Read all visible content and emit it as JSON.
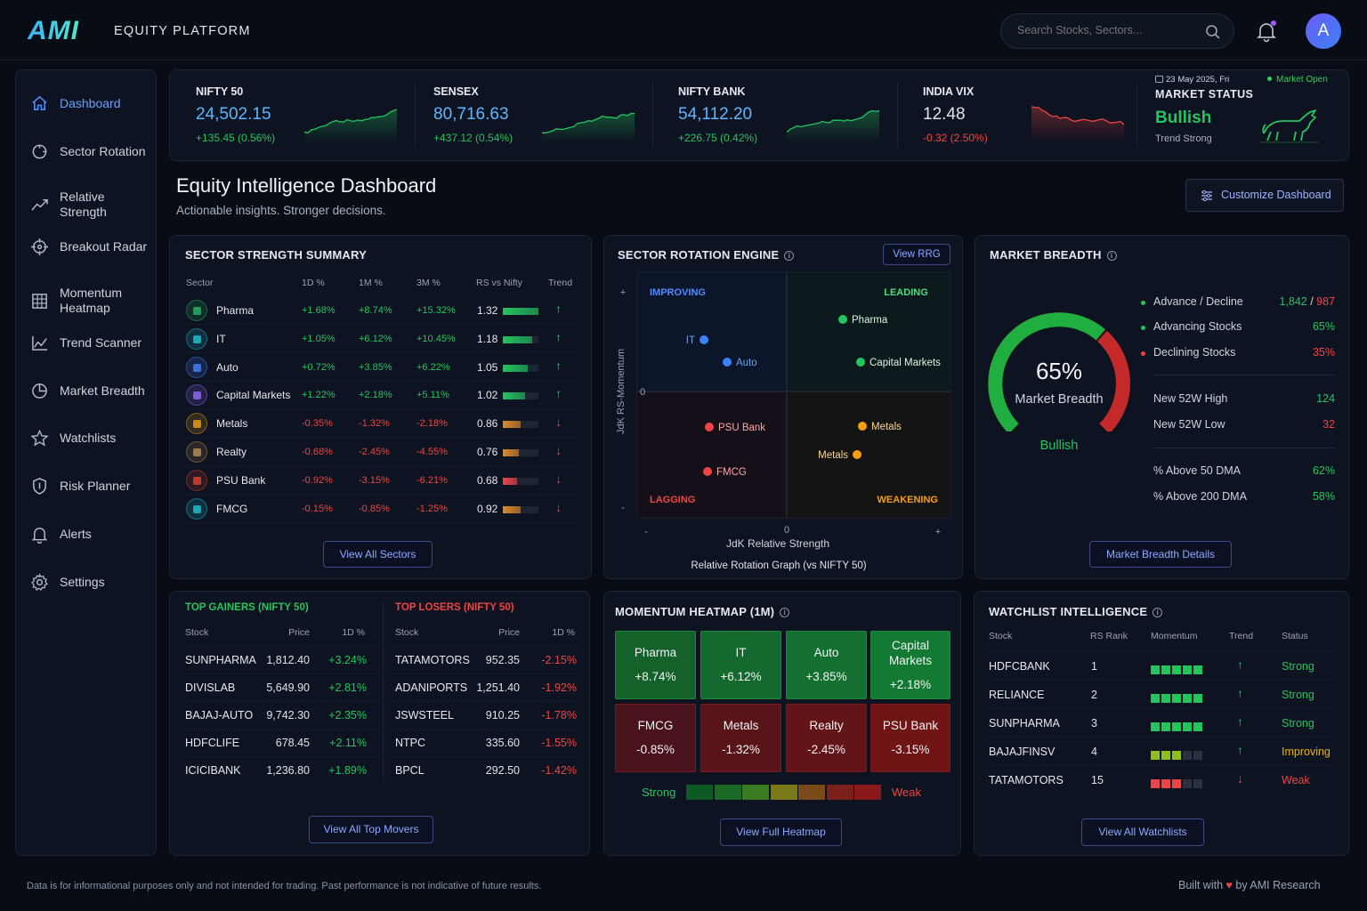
{
  "header": {
    "logo": "AMI",
    "platform": "EQUITY PLATFORM",
    "search_placeholder": "Search Stocks, Sectors...",
    "avatar": "A"
  },
  "sidebar": {
    "items": [
      {
        "label": "Dashboard",
        "icon": "home-icon"
      },
      {
        "label": "Sector Rotation",
        "icon": "rotate-icon"
      },
      {
        "label": "Relative Strength",
        "icon": "trend-line-icon"
      },
      {
        "label": "Breakout Radar",
        "icon": "crosshair-icon"
      },
      {
        "label": "Momentum Heatmap",
        "icon": "grid-icon"
      },
      {
        "label": "Trend Scanner",
        "icon": "area-chart-icon"
      },
      {
        "label": "Market Breadth",
        "icon": "pie-icon"
      },
      {
        "label": "Watchlists",
        "icon": "star-icon"
      },
      {
        "label": "Risk Planner",
        "icon": "shield-icon"
      },
      {
        "label": "Alerts",
        "icon": "bell-icon"
      },
      {
        "label": "Settings",
        "icon": "gear-icon"
      }
    ]
  },
  "tickers": [
    {
      "name": "NIFTY 50",
      "value": "24,502.15",
      "change": "+135.45 (0.56%)",
      "dir": "up"
    },
    {
      "name": "SENSEX",
      "value": "80,716.63",
      "change": "+437.12 (0.54%)",
      "dir": "up"
    },
    {
      "name": "NIFTY BANK",
      "value": "54,112.20",
      "change": "+226.75 (0.42%)",
      "dir": "up"
    },
    {
      "name": "INDIA VIX",
      "value": "12.48",
      "change": "-0.32 (2.50%)",
      "dir": "down"
    }
  ],
  "market_status": {
    "date": "23 May 2025, Fri",
    "open_label": "Market Open",
    "title": "MARKET STATUS",
    "state": "Bullish",
    "sub": "Trend Strong"
  },
  "page": {
    "title": "Equity Intelligence Dashboard",
    "subtitle": "Actionable insights. Stronger decisions.",
    "customize": "Customize Dashboard"
  },
  "sector_strength": {
    "title": "SECTOR STRENGTH SUMMARY",
    "headers": [
      "Sector",
      "1D %",
      "1M %",
      "3M %",
      "RS vs Nifty",
      "Trend"
    ],
    "rows": [
      {
        "name": "Pharma",
        "d1": "+1.68%",
        "m1": "+8.74%",
        "m3": "+15.32%",
        "rs": "1.32",
        "rs_level": 1.0,
        "up": true,
        "color": "#1f9d55"
      },
      {
        "name": "IT",
        "d1": "+1.05%",
        "m1": "+6.12%",
        "m3": "+10.45%",
        "rs": "1.18",
        "rs_level": 0.82,
        "up": true,
        "color": "#1aa7b8"
      },
      {
        "name": "Auto",
        "d1": "+0.72%",
        "m1": "+3.85%",
        "m3": "+6.22%",
        "rs": "1.05",
        "rs_level": 0.7,
        "up": true,
        "color": "#3b6fe0"
      },
      {
        "name": "Capital Markets",
        "d1": "+1.22%",
        "m1": "+2.18%",
        "m3": "+5.11%",
        "rs": "1.02",
        "rs_level": 0.62,
        "up": true,
        "color": "#7c5cd6"
      },
      {
        "name": "Metals",
        "d1": "-0.35%",
        "m1": "-1.32%",
        "m3": "-2.18%",
        "rs": "0.86",
        "rs_level": 0.5,
        "up": false,
        "color": "#c98a1a"
      },
      {
        "name": "Realty",
        "d1": "-0.68%",
        "m1": "-2.45%",
        "m3": "-4.55%",
        "rs": "0.76",
        "rs_level": 0.45,
        "up": false,
        "color": "#a07a4a"
      },
      {
        "name": "PSU Bank",
        "d1": "-0.92%",
        "m1": "-3.15%",
        "m3": "-6.21%",
        "rs": "0.68",
        "rs_level": 0.4,
        "up": false,
        "color": "#c0392b"
      },
      {
        "name": "FMCG",
        "d1": "-0.15%",
        "m1": "-0.85%",
        "m3": "-1.25%",
        "rs": "0.92",
        "rs_level": 0.5,
        "up": false,
        "color": "#1aa7b8"
      }
    ],
    "button": "View All Sectors"
  },
  "rotation": {
    "title": "SECTOR ROTATION ENGINE",
    "view_rrg": "View RRG",
    "quadrants": [
      "IMPROVING",
      "LEADING",
      "LAGGING",
      "WEAKENING"
    ],
    "y_label": "JdK RS-Momentum",
    "x_label": "JdK Relative Strength",
    "caption": "Relative Rotation Graph (vs NIFTY 50)",
    "axis_plus": "+",
    "axis_minus": "-",
    "axis_zero": "0",
    "points": [
      {
        "label": "IT",
        "color": "#3b82f6"
      },
      {
        "label": "Auto",
        "color": "#3b82f6"
      },
      {
        "label": "Pharma",
        "color": "#22c55e"
      },
      {
        "label": "Capital Markets",
        "color": "#22c55e"
      },
      {
        "label": "PSU Bank",
        "color": "#ef4444"
      },
      {
        "label": "FMCG",
        "color": "#ef4444"
      },
      {
        "label": "Metals",
        "color": "#f59e0b"
      },
      {
        "label": "Metals",
        "color": "#f59e0b"
      }
    ]
  },
  "breadth": {
    "title": "MARKET BREADTH",
    "gauge_pct": 65,
    "gauge_value": "65%",
    "gauge_label": "Market Breadth",
    "gauge_state": "Bullish",
    "stats": [
      {
        "label": "Advance / Decline",
        "value_a": "1,842",
        "sep": " / ",
        "value_b": "987",
        "dot": "green"
      },
      {
        "label": "Advancing Stocks",
        "value": "65%",
        "dot": "green",
        "color": "green"
      },
      {
        "label": "Declining Stocks",
        "value": "35%",
        "dot": "red",
        "color": "red"
      }
    ],
    "highs_lows": [
      {
        "label": "New 52W High",
        "value": "124",
        "color": "green"
      },
      {
        "label": "New 52W Low",
        "value": "32",
        "color": "red"
      }
    ],
    "dma": [
      {
        "label": "% Above 50 DMA",
        "value": "62%"
      },
      {
        "label": "% Above 200 DMA",
        "value": "58%"
      }
    ],
    "button": "Market Breadth Details"
  },
  "movers": {
    "gainers_title": "TOP GAINERS (NIFTY 50)",
    "losers_title": "TOP LOSERS (NIFTY 50)",
    "headers": [
      "Stock",
      "Price",
      "1D %"
    ],
    "gainers": [
      {
        "stock": "SUNPHARMA",
        "price": "1,812.40",
        "chg": "+3.24%"
      },
      {
        "stock": "DIVISLAB",
        "price": "5,649.90",
        "chg": "+2.81%"
      },
      {
        "stock": "BAJAJ-AUTO",
        "price": "9,742.30",
        "chg": "+2.35%"
      },
      {
        "stock": "HDFCLIFE",
        "price": "678.45",
        "chg": "+2.11%"
      },
      {
        "stock": "ICICIBANK",
        "price": "1,236.80",
        "chg": "+1.89%"
      }
    ],
    "losers": [
      {
        "stock": "TATAMOTORS",
        "price": "952.35",
        "chg": "-2.15%"
      },
      {
        "stock": "ADANIPORTS",
        "price": "1,251.40",
        "chg": "-1.92%"
      },
      {
        "stock": "JSWSTEEL",
        "price": "910.25",
        "chg": "-1.78%"
      },
      {
        "stock": "NTPC",
        "price": "335.60",
        "chg": "-1.55%"
      },
      {
        "stock": "BPCL",
        "price": "292.50",
        "chg": "-1.42%"
      }
    ],
    "button": "View All Top Movers"
  },
  "heatmap": {
    "title": "MOMENTUM HEATMAP (1M)",
    "cells": [
      {
        "name": "Pharma",
        "value": "+8.74%",
        "bg": "#14612a"
      },
      {
        "name": "IT",
        "value": "+6.12%",
        "bg": "#146a2e"
      },
      {
        "name": "Auto",
        "value": "+3.85%",
        "bg": "#147030"
      },
      {
        "name": "Capital Markets",
        "value": "+2.18%",
        "bg": "#137a34"
      },
      {
        "name": "FMCG",
        "value": "-0.85%",
        "bg": "#4a121a"
      },
      {
        "name": "Metals",
        "value": "-1.32%",
        "bg": "#581418"
      },
      {
        "name": "Realty",
        "value": "-2.45%",
        "bg": "#631416"
      },
      {
        "name": "PSU Bank",
        "value": "-3.15%",
        "bg": "#701516"
      }
    ],
    "legend_strong": "Strong",
    "legend_weak": "Weak",
    "legend_colors": [
      "#0f5a24",
      "#1a6a26",
      "#3a7a20",
      "#7a7a1a",
      "#7a4a1a",
      "#7a1f1a",
      "#8a1818"
    ],
    "button": "View Full Heatmap"
  },
  "watchlist": {
    "title": "WATCHLIST INTELLIGENCE",
    "headers": [
      "Stock",
      "RS Rank",
      "Momentum",
      "Trend",
      "Status"
    ],
    "rows": [
      {
        "stock": "HDFCBANK",
        "rank": "1",
        "momentum": 5,
        "up": true,
        "status": "Strong",
        "tone": "green"
      },
      {
        "stock": "RELIANCE",
        "rank": "2",
        "momentum": 5,
        "up": true,
        "status": "Strong",
        "tone": "green"
      },
      {
        "stock": "SUNPHARMA",
        "rank": "3",
        "momentum": 5,
        "up": true,
        "status": "Strong",
        "tone": "green"
      },
      {
        "stock": "BAJAJFINSV",
        "rank": "4",
        "momentum": 3,
        "up": true,
        "status": "Improving",
        "tone": "yellow"
      },
      {
        "stock": "TATAMOTORS",
        "rank": "15",
        "momentum": 3,
        "up": false,
        "status": "Weak",
        "tone": "red"
      }
    ],
    "button": "View All Watchlists"
  },
  "footer": {
    "disclaimer": "Data is for informational purposes only and not intended for trading. Past performance is not indicative of future results.",
    "built_with": "Built with",
    "by": "by AMI Research"
  }
}
